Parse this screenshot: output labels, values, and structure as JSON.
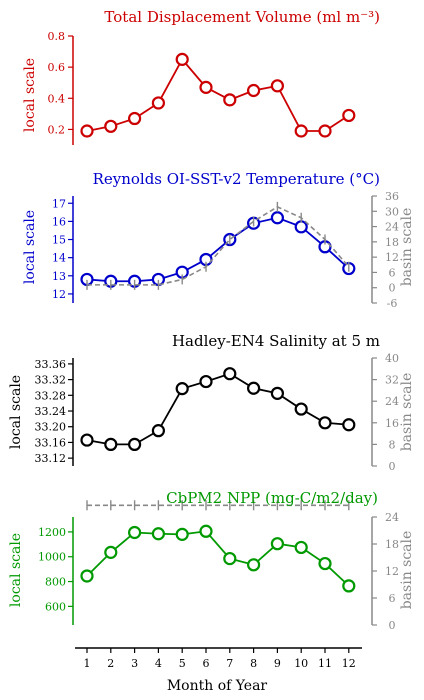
{
  "chart_data": [
    {
      "type": "line",
      "title": "Total Displacement Volume (ml m⁻³)",
      "ylabel": "local scale",
      "color": "#cc0000",
      "ylim": [
        0.1,
        0.8
      ],
      "yticks": [
        0.2,
        0.4,
        0.6,
        0.8
      ],
      "ytick_labels": [
        "0.2",
        "0.4",
        "0.6",
        "0.8"
      ],
      "x": [
        1,
        2,
        3,
        4,
        5,
        6,
        7,
        8,
        9,
        10,
        11,
        12
      ],
      "series": [
        {
          "values": [
            0.19,
            0.22,
            0.27,
            0.37,
            0.65,
            0.47,
            0.39,
            0.45,
            0.48,
            0.19,
            0.19,
            0.29
          ]
        }
      ]
    },
    {
      "type": "line",
      "title": "Reynolds OI-SST-v2 Temperature (°C)",
      "ylabel": "local scale",
      "ylabel_right": "basin scale",
      "color": "#0000cc",
      "ylim": [
        11.5,
        17.4
      ],
      "yticks": [
        12,
        13,
        14,
        15,
        16,
        17
      ],
      "ytick_labels": [
        "12",
        "13",
        "14",
        "15",
        "16",
        "17"
      ],
      "y2lim": [
        -6,
        36
      ],
      "y2ticks": [
        -6,
        0,
        6,
        12,
        18,
        24,
        30,
        36
      ],
      "y2tick_labels": [
        "-6",
        "0",
        "6",
        "12",
        "18",
        "24",
        "30",
        "36"
      ],
      "x": [
        1,
        2,
        3,
        4,
        5,
        6,
        7,
        8,
        9,
        10,
        11,
        12
      ],
      "series": [
        {
          "values": [
            12.8,
            12.7,
            12.7,
            12.8,
            13.2,
            13.9,
            15.0,
            15.9,
            16.2,
            15.7,
            14.6,
            13.4
          ]
        },
        {
          "axis": "right",
          "style": "dashed",
          "values": [
            12.5,
            12.5,
            12.5,
            12.5,
            12.8,
            13.5,
            15.0,
            16.0,
            16.8,
            16.2,
            15.0,
            13.5
          ]
        }
      ]
    },
    {
      "type": "line",
      "title": "Hadley-EN4 Salinity at 5 m",
      "ylabel": "local scale",
      "ylabel_right": "basin scale",
      "color": "#000000",
      "ylim": [
        33.1,
        33.375
      ],
      "yticks": [
        33.12,
        33.16,
        33.2,
        33.24,
        33.28,
        33.32,
        33.36
      ],
      "ytick_labels": [
        "33.12",
        "33.16",
        "33.20",
        "33.24",
        "33.28",
        "33.32",
        "33.36"
      ],
      "y2lim": [
        0,
        40
      ],
      "y2ticks": [
        0,
        8,
        16,
        24,
        32,
        40
      ],
      "y2tick_labels": [
        "0",
        "8",
        "16",
        "24",
        "32",
        "40"
      ],
      "x": [
        1,
        2,
        3,
        4,
        5,
        6,
        7,
        8,
        9,
        10,
        11,
        12
      ],
      "series": [
        {
          "values": [
            33.166,
            33.155,
            33.155,
            33.19,
            33.297,
            33.315,
            33.335,
            33.298,
            33.285,
            33.245,
            33.21,
            33.205
          ]
        },
        {
          "axis": "right",
          "style": "dashed",
          "values": [
            33.0,
            33.0,
            33.0,
            33.0,
            33.0,
            33.0,
            33.0,
            33.0,
            33.0,
            33.0,
            33.0,
            33.0
          ]
        }
      ]
    },
    {
      "type": "line",
      "title": "CbPM2 NPP (mg-C/m2/day)",
      "ylabel": "local scale",
      "ylabel_right": "basin scale",
      "color": "#009900",
      "ylim": [
        450,
        1320
      ],
      "yticks": [
        600,
        800,
        1000,
        1200
      ],
      "ytick_labels": [
        "600",
        "800",
        "1000",
        "1200"
      ],
      "y2lim": [
        0,
        24
      ],
      "y2ticks": [
        0,
        6,
        12,
        18,
        24
      ],
      "y2tick_labels": [
        "0",
        "6",
        "12",
        "18",
        "24"
      ],
      "x": [
        1,
        2,
        3,
        4,
        5,
        6,
        7,
        8,
        9,
        10,
        11,
        12
      ],
      "xticks": [
        "1",
        "2",
        "3",
        "4",
        "5",
        "6",
        "7",
        "8",
        "9",
        "10",
        "11",
        "12"
      ],
      "xlabel": "Month of Year",
      "series": [
        {
          "values": [
            845,
            1035,
            1195,
            1185,
            1180,
            1205,
            985,
            935,
            1105,
            1075,
            945,
            765
          ]
        }
      ]
    }
  ],
  "colors": {
    "dashed_series": "#888888",
    "right_axis": "#888888"
  }
}
